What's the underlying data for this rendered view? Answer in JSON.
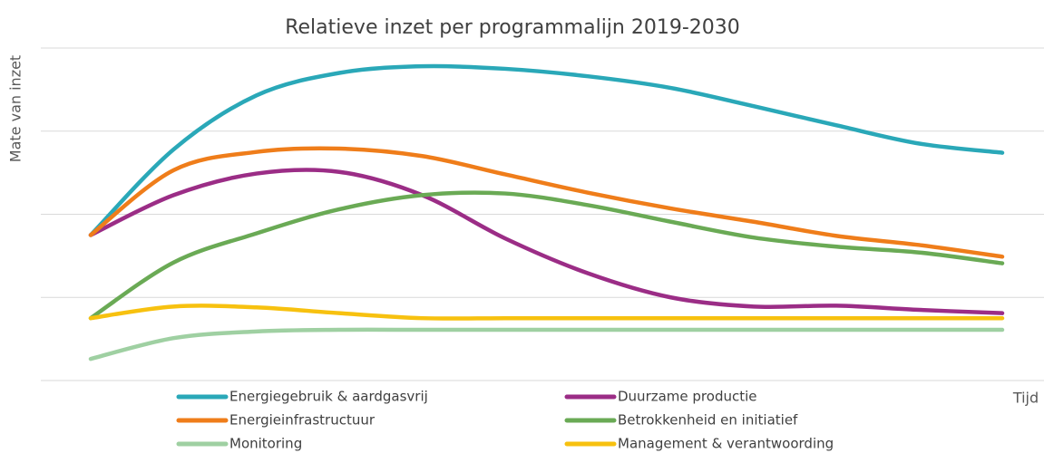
{
  "chart_data": {
    "type": "line",
    "title": "Relatieve inzet per programmalijn 2019-2030",
    "y_label": "Mate van inzet",
    "x_label": "Tijd",
    "categories": [
      null,
      null,
      null,
      null,
      null,
      null,
      null,
      null,
      null,
      null,
      null,
      null
    ],
    "ylim": [
      0,
      4
    ],
    "yticks": [
      0,
      1,
      2,
      3,
      4
    ],
    "grid": true,
    "series": [
      {
        "name": "Energiegebruik & aardgasvrij",
        "color": "#2aa8b8",
        "values": [
          1.75,
          2.78,
          3.43,
          3.7,
          3.78,
          3.75,
          3.66,
          3.52,
          3.3,
          3.07,
          2.85,
          2.74
        ]
      },
      {
        "name": "Duurzame productie",
        "color": "#9b2d86",
        "values": [
          1.75,
          2.23,
          2.49,
          2.51,
          2.23,
          1.71,
          1.29,
          1.0,
          0.89,
          0.9,
          0.85,
          0.81
        ]
      },
      {
        "name": "Energieinfrastructuur",
        "color": "#ef7d1a",
        "values": [
          1.75,
          2.53,
          2.75,
          2.79,
          2.7,
          2.48,
          2.26,
          2.07,
          1.91,
          1.74,
          1.63,
          1.49
        ]
      },
      {
        "name": "Betrokkenheid en initiatief",
        "color": "#6aaa55",
        "values": [
          0.75,
          1.42,
          1.77,
          2.06,
          2.23,
          2.25,
          2.11,
          1.91,
          1.72,
          1.61,
          1.54,
          1.41
        ]
      },
      {
        "name": "Monitoring",
        "color": "#9fd0a2",
        "values": [
          0.26,
          0.51,
          0.59,
          0.61,
          0.61,
          0.61,
          0.61,
          0.61,
          0.61,
          0.61,
          0.61,
          0.61
        ]
      },
      {
        "name": "Management & verantwoording",
        "color": "#f7c10f",
        "values": [
          0.75,
          0.89,
          0.88,
          0.81,
          0.75,
          0.75,
          0.75,
          0.75,
          0.75,
          0.75,
          0.75,
          0.75
        ]
      }
    ]
  }
}
